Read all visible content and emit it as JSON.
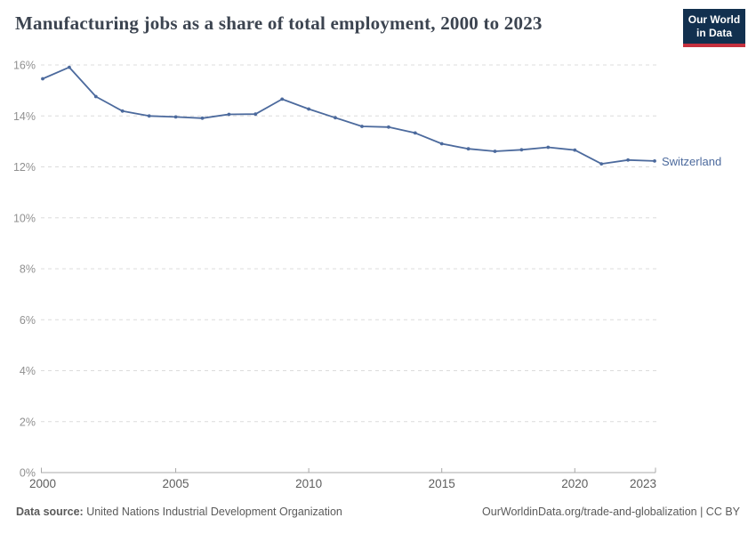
{
  "header": {
    "title": "Manufacturing jobs as a share of total employment, 2000 to 2023",
    "logo": {
      "line1": "Our World",
      "line2": "in Data"
    }
  },
  "chart_data": {
    "type": "line",
    "title": "Manufacturing jobs as a share of total employment, 2000 to 2023",
    "x": [
      2000,
      2001,
      2002,
      2003,
      2004,
      2005,
      2006,
      2007,
      2008,
      2009,
      2010,
      2011,
      2012,
      2013,
      2014,
      2015,
      2016,
      2017,
      2018,
      2019,
      2020,
      2021,
      2022,
      2023
    ],
    "series": [
      {
        "name": "Switzerland",
        "color": "#4c6a9d",
        "values": [
          15.46,
          15.91,
          14.76,
          14.19,
          14.0,
          13.96,
          13.91,
          14.06,
          14.07,
          14.66,
          14.27,
          13.93,
          13.59,
          13.56,
          13.33,
          12.91,
          12.71,
          12.61,
          12.67,
          12.77,
          12.66,
          12.12,
          12.27,
          12.23
        ]
      }
    ],
    "xlabel": "",
    "ylabel": "",
    "ylim": [
      0,
      16
    ],
    "yticks": [
      0,
      2,
      4,
      6,
      8,
      10,
      12,
      14,
      16
    ],
    "ytick_suffix": "%",
    "xticks": [
      2000,
      2005,
      2010,
      2015,
      2020,
      2023
    ],
    "grid": "horizontal-dashed",
    "legend_position": "end-of-line"
  },
  "footer": {
    "datasource_label": "Data source:",
    "datasource_value": " United Nations Industrial Development Organization",
    "attribution": "OurWorldinData.org/trade-and-globalization | CC BY"
  },
  "colors": {
    "line": "#4c6a9d",
    "grid": "#dcdcdc",
    "axis": "#a8a8a8",
    "ytick_label": "#909090",
    "xtick_label": "#5e5e5e",
    "title": "#3c4450",
    "footer_text": "#5a5a5a",
    "logo_bg": "#12304f",
    "logo_accent": "#c5303e"
  }
}
